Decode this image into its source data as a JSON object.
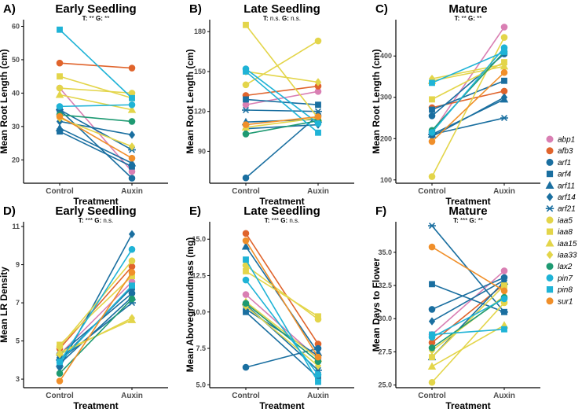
{
  "genotype_styles": [
    {
      "name": "abp1",
      "color": "#d97fb3",
      "shape": "circle"
    },
    {
      "name": "afb3",
      "color": "#e0642c",
      "shape": "circle"
    },
    {
      "name": "arf1",
      "color": "#1a6fa0",
      "shape": "circle"
    },
    {
      "name": "arf4",
      "color": "#1a6fa0",
      "shape": "square"
    },
    {
      "name": "arf11",
      "color": "#1a6fa0",
      "shape": "triangle"
    },
    {
      "name": "arf14",
      "color": "#1a6fa0",
      "shape": "diamond"
    },
    {
      "name": "arf21",
      "color": "#1a6fa0",
      "shape": "star"
    },
    {
      "name": "iaa5",
      "color": "#e3d54a",
      "shape": "circle"
    },
    {
      "name": "iaa8",
      "color": "#e3d54a",
      "shape": "square"
    },
    {
      "name": "iaa15",
      "color": "#e3d54a",
      "shape": "triangle"
    },
    {
      "name": "iaa33",
      "color": "#e3d54a",
      "shape": "diamond"
    },
    {
      "name": "lax2",
      "color": "#1e9a72",
      "shape": "circle"
    },
    {
      "name": "pin7",
      "color": "#1fb3d6",
      "shape": "circle"
    },
    {
      "name": "pin8",
      "color": "#1fb3d6",
      "shape": "square"
    },
    {
      "name": "sur1",
      "color": "#f08f2a",
      "shape": "circle"
    }
  ],
  "chart_data": [
    {
      "type": "line",
      "panel": "A)",
      "title": "Early Seedling",
      "stats": {
        "t_label": "T:",
        "t": "**",
        "g_label": "G:",
        "g": "**"
      },
      "xlabel": "Treatment",
      "ylabel": "Mean Root Length (cm)",
      "categories": [
        "Control",
        "Auxin"
      ],
      "ylim": [
        13,
        62
      ],
      "yticks": [
        20,
        30,
        40,
        50,
        60
      ],
      "series": [
        {
          "name": "abp1",
          "values": [
            41.5,
            16.5
          ]
        },
        {
          "name": "afb3",
          "values": [
            49,
            47.5
          ]
        },
        {
          "name": "arf1",
          "values": [
            35,
            14.5
          ]
        },
        {
          "name": "arf4",
          "values": [
            28.5,
            18
          ]
        },
        {
          "name": "arf11",
          "values": [
            29.5,
            19
          ]
        },
        {
          "name": "arf14",
          "values": [
            31.5,
            27.5
          ]
        },
        {
          "name": "arf21",
          "values": [
            35,
            23
          ]
        },
        {
          "name": "iaa5",
          "values": [
            41.5,
            40
          ]
        },
        {
          "name": "iaa8",
          "values": [
            45,
            38.5
          ]
        },
        {
          "name": "iaa15",
          "values": [
            39.5,
            35
          ]
        },
        {
          "name": "iaa33",
          "values": [
            32.5,
            24
          ]
        },
        {
          "name": "lax2",
          "values": [
            33.5,
            31.5
          ]
        },
        {
          "name": "pin7",
          "values": [
            36,
            36.5
          ]
        },
        {
          "name": "pin8",
          "values": [
            59,
            38.5
          ]
        },
        {
          "name": "sur1",
          "values": [
            33,
            20.5
          ]
        }
      ]
    },
    {
      "type": "line",
      "panel": "B)",
      "title": "Late Seedling",
      "stats": {
        "t_label": "T:",
        "t": "n.s.",
        "g_label": "G:",
        "g": "n.s."
      },
      "xlabel": "Treatment",
      "ylabel": "Mean Root Length (cm)",
      "categories": [
        "Control",
        "Auxin"
      ],
      "ylim": [
        66,
        189
      ],
      "yticks": [
        90,
        120,
        150,
        180
      ],
      "series": [
        {
          "name": "abp1",
          "values": [
            125,
            135
          ]
        },
        {
          "name": "afb3",
          "values": [
            132,
            139
          ]
        },
        {
          "name": "arf1",
          "values": [
            70,
            117
          ]
        },
        {
          "name": "arf4",
          "values": [
            129,
            125
          ]
        },
        {
          "name": "arf11",
          "values": [
            112,
            114
          ]
        },
        {
          "name": "arf14",
          "values": [
            107,
            110
          ]
        },
        {
          "name": "arf21",
          "values": [
            121,
            120
          ]
        },
        {
          "name": "iaa5",
          "values": [
            140,
            173
          ]
        },
        {
          "name": "iaa8",
          "values": [
            185,
            115
          ]
        },
        {
          "name": "iaa15",
          "values": [
            108,
            115
          ]
        },
        {
          "name": "iaa33",
          "values": [
            150,
            142
          ]
        },
        {
          "name": "lax2",
          "values": [
            103,
            113
          ]
        },
        {
          "name": "pin7",
          "values": [
            152,
            111
          ]
        },
        {
          "name": "pin8",
          "values": [
            150,
            104
          ]
        },
        {
          "name": "sur1",
          "values": [
            110,
            116
          ]
        }
      ]
    },
    {
      "type": "line",
      "panel": "C)",
      "title": "Mature",
      "stats": {
        "t_label": "T:",
        "t": "**",
        "g_label": "G:",
        "g": "**"
      },
      "xlabel": "Treatment",
      "ylabel": "Mean Root Length (cm)",
      "categories": [
        "Control",
        "Auxin"
      ],
      "ylim": [
        92,
        488
      ],
      "yticks": [
        100,
        200,
        300,
        400
      ],
      "series": [
        {
          "name": "abp1",
          "values": [
            215,
            470
          ]
        },
        {
          "name": "afb3",
          "values": [
            275,
            315
          ]
        },
        {
          "name": "arf1",
          "values": [
            255,
            405
          ]
        },
        {
          "name": "arf4",
          "values": [
            270,
            340
          ]
        },
        {
          "name": "arf11",
          "values": [
            210,
            295
          ]
        },
        {
          "name": "arf14",
          "values": [
            205,
            300
          ]
        },
        {
          "name": "arf21",
          "values": [
            210,
            250
          ]
        },
        {
          "name": "iaa5",
          "values": [
            108,
            445
          ]
        },
        {
          "name": "iaa8",
          "values": [
            295,
            385
          ]
        },
        {
          "name": "iaa15",
          "values": [
            340,
            375
          ]
        },
        {
          "name": "iaa33",
          "values": [
            345,
            380
          ]
        },
        {
          "name": "lax2",
          "values": [
            220,
            410
          ]
        },
        {
          "name": "pin7",
          "values": [
            215,
            420
          ]
        },
        {
          "name": "pin8",
          "values": [
            335,
            410
          ]
        },
        {
          "name": "sur1",
          "values": [
            193,
            360
          ]
        }
      ]
    },
    {
      "type": "line",
      "panel": "D)",
      "title": "Early Seedling",
      "stats": {
        "t_label": "T:",
        "t": "***",
        "g_label": "G:",
        "g": "n.s."
      },
      "xlabel": "Treatment",
      "ylabel": "Mean LR Density",
      "categories": [
        "Control",
        "Auxin"
      ],
      "ylim": [
        2.55,
        11.25
      ],
      "yticks": [
        3,
        5,
        7,
        9,
        11
      ],
      "series": [
        {
          "name": "abp1",
          "values": [
            4.3,
            8.1
          ]
        },
        {
          "name": "afb3",
          "values": [
            4.6,
            8.9
          ]
        },
        {
          "name": "arf1",
          "values": [
            4.3,
            7.5
          ]
        },
        {
          "name": "arf4",
          "values": [
            4.0,
            7.8
          ]
        },
        {
          "name": "arf11",
          "values": [
            3.8,
            7.3
          ]
        },
        {
          "name": "arf14",
          "values": [
            3.6,
            10.6
          ]
        },
        {
          "name": "arf21",
          "values": [
            4.0,
            7.0
          ]
        },
        {
          "name": "iaa5",
          "values": [
            4.7,
            9.2
          ]
        },
        {
          "name": "iaa8",
          "values": [
            4.8,
            8.4
          ]
        },
        {
          "name": "iaa15",
          "values": [
            4.4,
            6.1
          ]
        },
        {
          "name": "iaa33",
          "values": [
            4.3,
            6.2
          ]
        },
        {
          "name": "lax2",
          "values": [
            3.3,
            7.2
          ]
        },
        {
          "name": "pin7",
          "values": [
            3.9,
            9.8
          ]
        },
        {
          "name": "pin8",
          "values": [
            3.9,
            7.9
          ]
        },
        {
          "name": "sur1",
          "values": [
            2.9,
            8.6
          ]
        }
      ]
    },
    {
      "type": "line",
      "panel": "E)",
      "title": "Late Seedling",
      "stats": {
        "t_label": "T:",
        "t": "***",
        "g_label": "G:",
        "g": "n.s."
      },
      "xlabel": "Treatment",
      "ylabel": "Mean Abovegroundmass (mg)",
      "categories": [
        "Control",
        "Auxin"
      ],
      "ylim": [
        4.8,
        16.2
      ],
      "yticks": [
        5.0,
        7.5,
        10.0,
        12.5,
        15.0
      ],
      "series": [
        {
          "name": "abp1",
          "values": [
            11.2,
            6.8
          ]
        },
        {
          "name": "afb3",
          "values": [
            15.4,
            7.8
          ]
        },
        {
          "name": "arf1",
          "values": [
            6.2,
            7.5
          ]
        },
        {
          "name": "arf4",
          "values": [
            10.0,
            5.5
          ]
        },
        {
          "name": "arf11",
          "values": [
            14.5,
            7.2
          ]
        },
        {
          "name": "arf14",
          "values": [
            10.2,
            7.0
          ]
        },
        {
          "name": "arf21",
          "values": [
            10.5,
            6.0
          ]
        },
        {
          "name": "iaa5",
          "values": [
            13.2,
            9.5
          ]
        },
        {
          "name": "iaa8",
          "values": [
            12.8,
            9.7
          ]
        },
        {
          "name": "iaa15",
          "values": [
            10.7,
            6.8
          ]
        },
        {
          "name": "iaa33",
          "values": [
            10.4,
            6.3
          ]
        },
        {
          "name": "lax2",
          "values": [
            10.6,
            6.6
          ]
        },
        {
          "name": "pin7",
          "values": [
            12.2,
            5.7
          ]
        },
        {
          "name": "pin8",
          "values": [
            13.6,
            5.2
          ]
        },
        {
          "name": "sur1",
          "values": [
            14.9,
            6.9
          ]
        }
      ]
    },
    {
      "type": "line",
      "panel": "F)",
      "title": "Mature",
      "stats": {
        "t_label": "T:",
        "t": "***",
        "g_label": "G:",
        "g": "**"
      },
      "xlabel": "Treatment",
      "ylabel": "Mean Days to Flower",
      "categories": [
        "Control",
        "Auxin"
      ],
      "ylim": [
        24.8,
        37.3
      ],
      "yticks": [
        25.0,
        27.5,
        30.0,
        32.5,
        35.0
      ],
      "series": [
        {
          "name": "abp1",
          "values": [
            28.8,
            33.6
          ]
        },
        {
          "name": "afb3",
          "values": [
            28.2,
            32.6
          ]
        },
        {
          "name": "arf1",
          "values": [
            30.7,
            33.1
          ]
        },
        {
          "name": "arf4",
          "values": [
            32.6,
            30.5
          ]
        },
        {
          "name": "arf11",
          "values": [
            27.1,
            32.8
          ]
        },
        {
          "name": "arf14",
          "values": [
            29.8,
            32.9
          ]
        },
        {
          "name": "arf21",
          "values": [
            37.0,
            30.5
          ]
        },
        {
          "name": "iaa5",
          "values": [
            25.2,
            31.2
          ]
        },
        {
          "name": "iaa8",
          "values": [
            27.1,
            32.5
          ]
        },
        {
          "name": "iaa15",
          "values": [
            26.4,
            29.5
          ]
        },
        {
          "name": "iaa33",
          "values": [
            27.6,
            31.7
          ]
        },
        {
          "name": "lax2",
          "values": [
            27.8,
            31.6
          ]
        },
        {
          "name": "pin7",
          "values": [
            28.6,
            31.5
          ]
        },
        {
          "name": "pin8",
          "values": [
            28.8,
            29.2
          ]
        },
        {
          "name": "sur1",
          "values": [
            35.4,
            32.1
          ]
        }
      ]
    }
  ]
}
